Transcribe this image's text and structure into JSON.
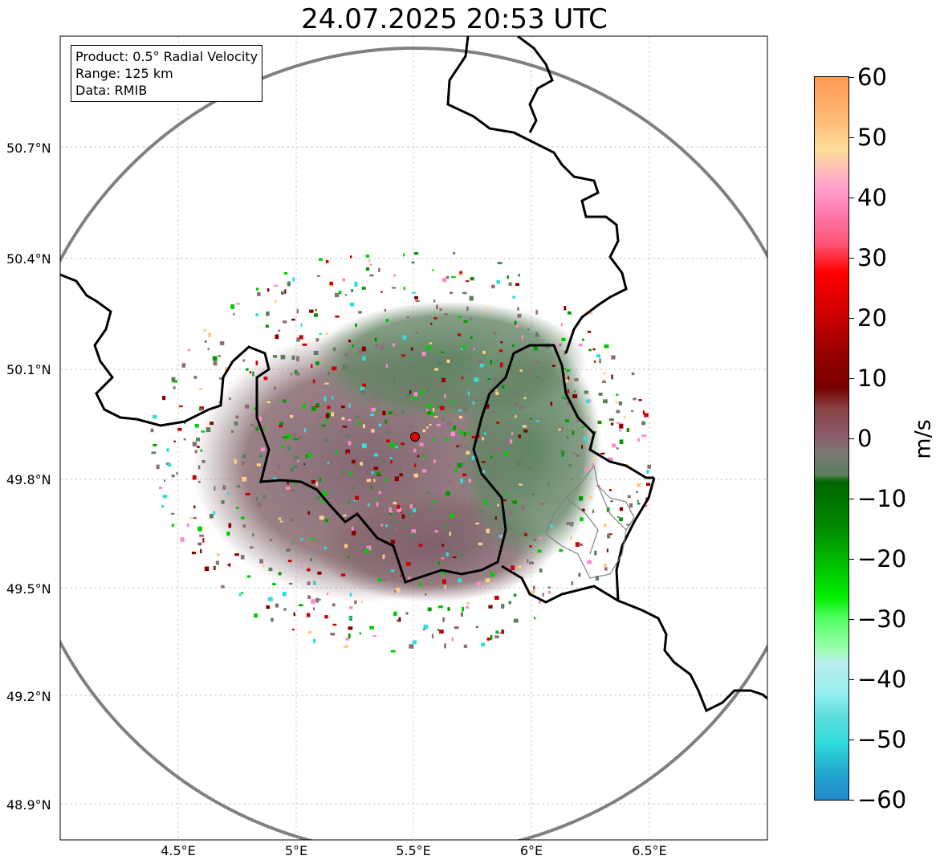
{
  "title": "24.07.2025 20:53 UTC",
  "info": {
    "product": "Product: 0.5° Radial Velocity",
    "range": "Range: 125 km",
    "source": "Data: RMIB"
  },
  "axes": {
    "lat_labels": [
      "50.7°N",
      "50.4°N",
      "50.1°N",
      "49.8°N",
      "49.5°N",
      "49.2°N",
      "48.9°N"
    ],
    "lon_labels": [
      "4.5°E",
      "5°E",
      "5.5°E",
      "6°E",
      "6.5°E"
    ]
  },
  "colorbar": {
    "unit": "m/s",
    "ticks": [
      "60",
      "50",
      "40",
      "30",
      "20",
      "10",
      "0",
      "−10",
      "−20",
      "−30",
      "−40",
      "−50",
      "−60"
    ],
    "min": -60,
    "max": 60
  },
  "colors": {
    "radar_center": "#e60000",
    "range_ring": "#808080",
    "border": "#000000",
    "neutral_echo": "#8a6f74",
    "green_echo": "#5b7f5e"
  }
}
